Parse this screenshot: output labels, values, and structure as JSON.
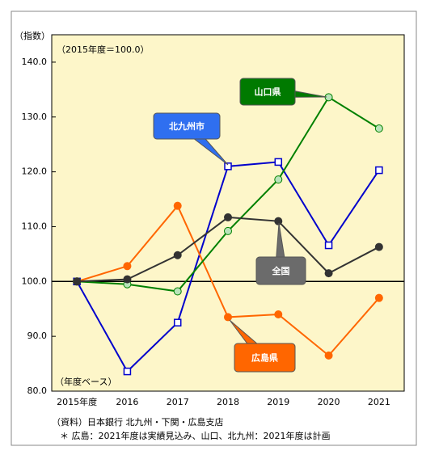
{
  "chart_data": {
    "type": "line",
    "y_label": "（指数）",
    "subtitle": "（2015年度＝100.0）",
    "annotation": "（年度ベース）",
    "source": "（資料）日本銀行 北九州・下関・広島支店",
    "note": "＊ 広島：2021年度は実績見込み、山口、北九州：2021年度は計画",
    "categories": [
      "2015年度",
      "2016",
      "2017",
      "2018",
      "2019",
      "2020",
      "2021"
    ],
    "series": [
      {
        "name": "北九州市",
        "color": "#0000cc",
        "label_color": "#2f6ff0",
        "marker": "square",
        "values": [
          100,
          83.6,
          92.5,
          121.0,
          121.8,
          106.6,
          120.3
        ]
      },
      {
        "name": "広島県",
        "color": "#ff6600",
        "label_color": "#ff6600",
        "marker": "circle",
        "values": [
          100,
          102.8,
          113.8,
          93.5,
          94.0,
          86.5,
          97.0
        ]
      },
      {
        "name": "山口県",
        "color": "#008000",
        "label_color": "#007a00",
        "marker": "circle-light",
        "values": [
          100,
          99.5,
          98.2,
          109.2,
          118.6,
          133.6,
          127.9
        ]
      },
      {
        "name": "全国",
        "color": "#333333",
        "label_color": "#6b6b6b",
        "marker": "circle",
        "values": [
          100,
          100.4,
          104.8,
          111.7,
          111.0,
          101.5,
          106.3
        ]
      }
    ],
    "ylim": [
      80,
      145
    ],
    "yticks": [
      {
        "value": 80,
        "label": "80.0"
      },
      {
        "value": 90,
        "label": "90.0"
      },
      {
        "value": 100,
        "label": "100.0"
      },
      {
        "value": 110,
        "label": "110.0"
      },
      {
        "value": 120,
        "label": "120.0"
      },
      {
        "value": 130,
        "label": "130.0"
      },
      {
        "value": 140,
        "label": "140.0"
      }
    ],
    "hline": 100,
    "grid": false
  }
}
